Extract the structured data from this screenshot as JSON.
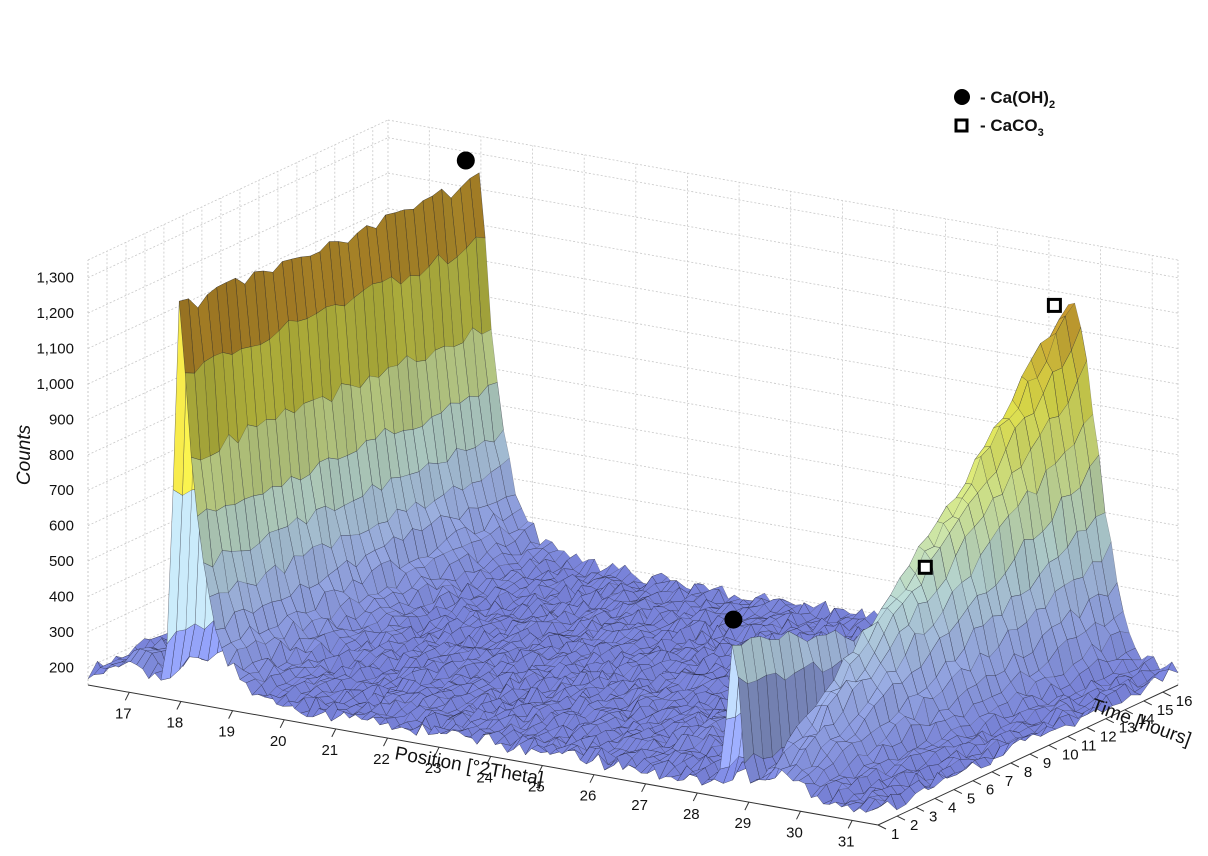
{
  "chart_data": {
    "type": "surface",
    "xlabel": "Position [°2Theta]",
    "ylabel": "Time [hours]",
    "zlabel": "Counts",
    "x_ticks": [
      "17",
      "18",
      "19",
      "20",
      "21",
      "22",
      "23",
      "24",
      "25",
      "26",
      "27",
      "28",
      "29",
      "30",
      "31"
    ],
    "y_ticks": [
      "1",
      "2",
      "3",
      "4",
      "5",
      "6",
      "7",
      "8",
      "9",
      "10",
      "11",
      "12",
      "13",
      "14",
      "15",
      "16"
    ],
    "z_ticks": [
      "200",
      "300",
      "400",
      "500",
      "600",
      "700",
      "800",
      "900",
      "1,000",
      "1,100",
      "1,200",
      "1,300"
    ],
    "xlim": [
      16.2,
      31.5
    ],
    "ylim": [
      1,
      16.8
    ],
    "zlim": [
      150,
      1350
    ],
    "baseline_counts": 190,
    "peaks": [
      {
        "phase": "Ca(OH)2",
        "position": 18.0,
        "counts_start": 1300,
        "counts_end": 1270
      },
      {
        "phase": "Ca(OH)2",
        "position": 28.7,
        "counts_start": 600,
        "counts_end": 260
      },
      {
        "phase": "CaCO3",
        "position": 29.4,
        "counts_start": 260,
        "counts_end": 1180
      },
      {
        "phase": "CaCO3",
        "position": 26.9,
        "counts_start": 190,
        "counts_end": 290
      }
    ],
    "markers": [
      {
        "symbol": "filled-circle",
        "phase": "Ca(OH)2",
        "position": 18.0,
        "time": 16
      },
      {
        "symbol": "filled-circle",
        "phase": "Ca(OH)2",
        "position": 28.7,
        "time": 1
      },
      {
        "symbol": "open-square",
        "phase": "CaCO3",
        "position": 29.4,
        "time": 16
      },
      {
        "symbol": "open-square",
        "phase": "CaCO3",
        "position": 26.9,
        "time": 16
      }
    ],
    "legend": {
      "placement": "top-right",
      "entries": [
        {
          "symbol": "filled-circle",
          "prefix": "- Ca(OH)",
          "sub": "2",
          "suffix": ""
        },
        {
          "symbol": "open-square",
          "prefix": "- CaCO",
          "sub": "3",
          "suffix": ""
        }
      ]
    },
    "colormap": [
      "#7a84dc",
      "#9db0ea",
      "#bfe0dc",
      "#d9ec8e",
      "#e3e24a",
      "#c79a2e",
      "#9a4e12"
    ],
    "grid": true
  }
}
